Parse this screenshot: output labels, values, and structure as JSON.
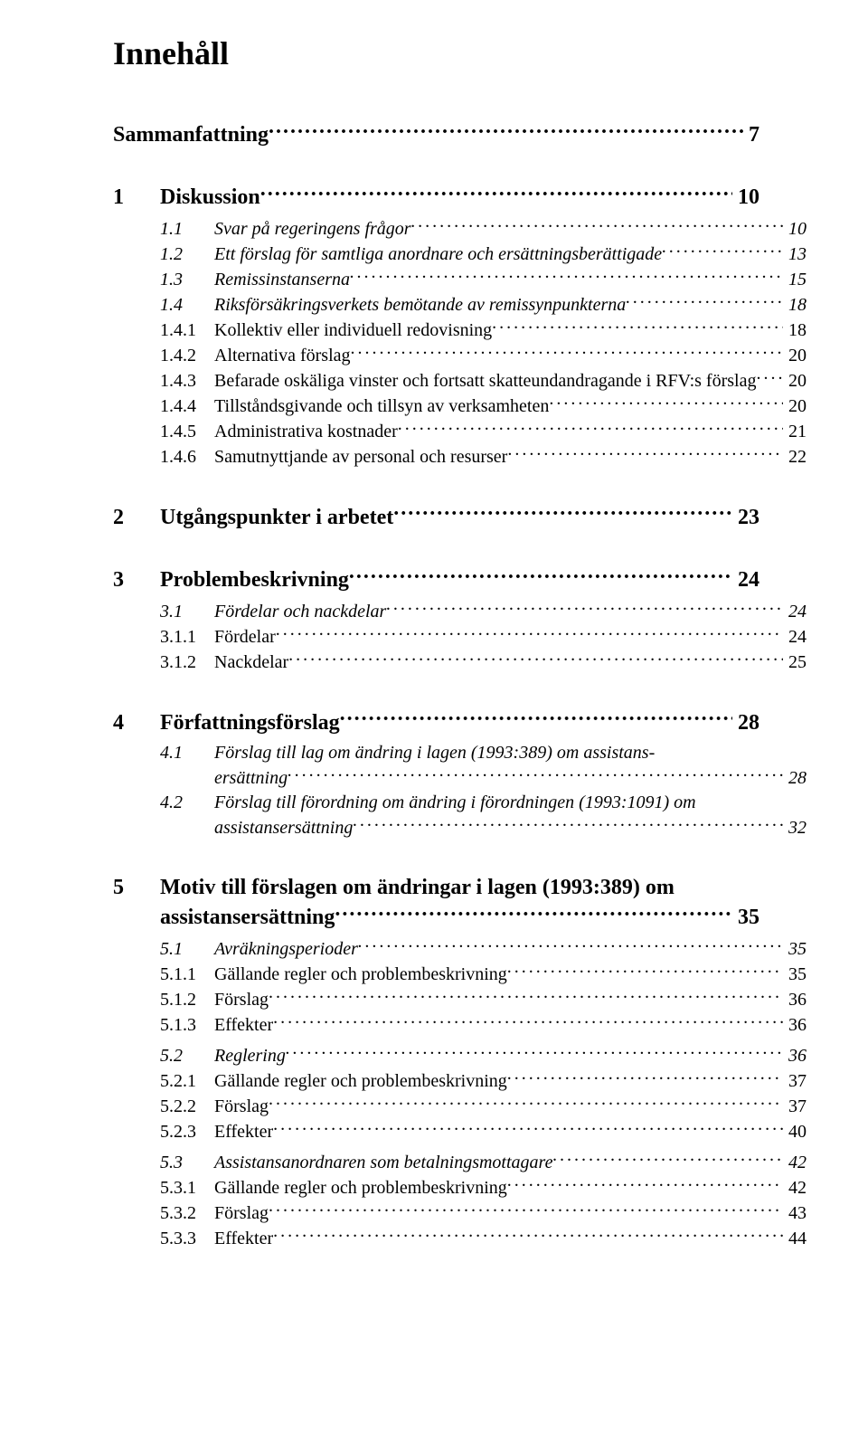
{
  "title": "Innehåll",
  "entries": [
    {
      "level": 0,
      "num": "",
      "label": "Sammanfattning",
      "page": "7",
      "gap_before": 0
    },
    {
      "level": 1,
      "num": "1",
      "label": "Diskussion",
      "page": "10",
      "gap_before": 36
    },
    {
      "level": 2,
      "num": "1.1",
      "label": "Svar på regeringens frågor",
      "page": "10",
      "gap_before": 4
    },
    {
      "level": 2,
      "num": "1.2",
      "label": "Ett förslag för samtliga anordnare och ersättningsberättigade",
      "page": "13",
      "gap_before": 0
    },
    {
      "level": 2,
      "num": "1.3",
      "label": "Remissinstanserna",
      "page": "15",
      "gap_before": 0
    },
    {
      "level": 2,
      "num": "1.4",
      "label": "Riksförsäkringsverkets bemötande av remissynpunkterna",
      "page": "18",
      "gap_before": 0
    },
    {
      "level": 3,
      "num": "1.4.1",
      "label": "Kollektiv eller individuell redovisning",
      "page": "18",
      "gap_before": 0
    },
    {
      "level": 3,
      "num": "1.4.2",
      "label": "Alternativa förslag",
      "page": "20",
      "gap_before": 0
    },
    {
      "level": 3,
      "num": "1.4.3",
      "label": "Befarade oskäliga vinster och fortsatt skatteundandragande i RFV:s förslag",
      "page": "20",
      "gap_before": 0
    },
    {
      "level": 3,
      "num": "1.4.4",
      "label": "Tillståndsgivande och tillsyn av verksamheten",
      "page": "20",
      "gap_before": 0
    },
    {
      "level": 3,
      "num": "1.4.5",
      "label": "Administrativa kostnader",
      "page": "21",
      "gap_before": 0
    },
    {
      "level": 3,
      "num": "1.4.6",
      "label": "Samutnyttjande av personal och resurser",
      "page": "22",
      "gap_before": 0
    },
    {
      "level": 1,
      "num": "2",
      "label": "Utgångspunkter i arbetet",
      "page": "23",
      "gap_before": 36
    },
    {
      "level": 1,
      "num": "3",
      "label": "Problembeskrivning",
      "page": "24",
      "gap_before": 36
    },
    {
      "level": 2,
      "num": "3.1",
      "label": "Fördelar och nackdelar",
      "page": "24",
      "gap_before": 4
    },
    {
      "level": 3,
      "num": "3.1.1",
      "label": "Fördelar",
      "page": "24",
      "gap_before": 0
    },
    {
      "level": 3,
      "num": "3.1.2",
      "label": "Nackdelar",
      "page": "25",
      "gap_before": 0
    },
    {
      "level": 1,
      "num": "4",
      "label": "Författningsförslag",
      "page": "28",
      "gap_before": 36
    },
    {
      "level": 2,
      "num": "4.1",
      "label_lines": [
        "Förslag till lag om ändring i lagen (1993:389) om assistans-",
        "ersättning"
      ],
      "page": "28",
      "gap_before": 4
    },
    {
      "level": 2,
      "num": "4.2",
      "label_lines": [
        "Förslag till förordning om ändring i förordningen (1993:1091) om",
        "assistansersättning"
      ],
      "page": "32",
      "gap_before": 0
    },
    {
      "level": 1,
      "num": "5",
      "label_lines": [
        "Motiv till förslagen om ändringar i lagen (1993:389) om",
        "assistansersättning"
      ],
      "page": "35",
      "gap_before": 36
    },
    {
      "level": 2,
      "num": "5.1",
      "label": "Avräkningsperioder",
      "page": "35",
      "gap_before": 4
    },
    {
      "level": 3,
      "num": "5.1.1",
      "label": "Gällande regler och problembeskrivning",
      "page": "35",
      "gap_before": 0
    },
    {
      "level": 3,
      "num": "5.1.2",
      "label": "Förslag",
      "page": "36",
      "gap_before": 0
    },
    {
      "level": 3,
      "num": "5.1.3",
      "label": "Effekter",
      "page": "36",
      "gap_before": 0
    },
    {
      "level": 2,
      "num": "5.2",
      "label": "Reglering",
      "page": "36",
      "gap_before": 6
    },
    {
      "level": 3,
      "num": "5.2.1",
      "label": "Gällande regler och problembeskrivning",
      "page": "37",
      "gap_before": 0
    },
    {
      "level": 3,
      "num": "5.2.2",
      "label": "Förslag",
      "page": "37",
      "gap_before": 0
    },
    {
      "level": 3,
      "num": "5.2.3",
      "label": "Effekter",
      "page": "40",
      "gap_before": 0
    },
    {
      "level": 2,
      "num": "5.3",
      "label": "Assistansanordnaren som betalningsmottagare",
      "page": "42",
      "gap_before": 6
    },
    {
      "level": 3,
      "num": "5.3.1",
      "label": "Gällande regler och problembeskrivning",
      "page": "42",
      "gap_before": 0
    },
    {
      "level": 3,
      "num": "5.3.2",
      "label": "Förslag",
      "page": "43",
      "gap_before": 0
    },
    {
      "level": 3,
      "num": "5.3.3",
      "label": "Effekter",
      "page": "44",
      "gap_before": 0
    }
  ]
}
